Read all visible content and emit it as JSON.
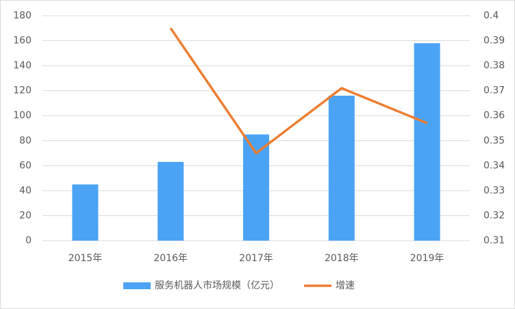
{
  "chart_data": {
    "type": "combo",
    "categories": [
      "2015年",
      "2016年",
      "2017年",
      "2018年",
      "2019年"
    ],
    "series": [
      {
        "name": "服务机器人市场规模（亿元）",
        "type": "bar",
        "color": "#4ba3f5",
        "values": [
          45,
          63,
          85,
          116,
          158
        ]
      },
      {
        "name": "增速",
        "type": "line",
        "axis": "y2",
        "color": "#ed7d31",
        "values": [
          null,
          0.395,
          0.345,
          0.371,
          0.357
        ]
      }
    ],
    "ylim": [
      0,
      180
    ],
    "yticks": [
      0,
      20,
      40,
      60,
      80,
      100,
      120,
      140,
      160,
      180
    ],
    "y2lim": [
      0.31,
      0.4
    ],
    "y2ticks": [
      0.31,
      0.32,
      0.33,
      0.34,
      0.35,
      0.36,
      0.37,
      0.38,
      0.39,
      0.4
    ],
    "grid": true,
    "legend": "bottom"
  }
}
